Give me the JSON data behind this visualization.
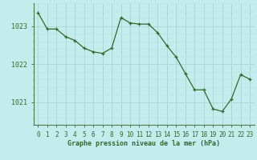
{
  "x": [
    0,
    1,
    2,
    3,
    4,
    5,
    6,
    7,
    8,
    9,
    10,
    11,
    12,
    13,
    14,
    15,
    16,
    17,
    18,
    19,
    20,
    21,
    22,
    23
  ],
  "y": [
    1023.35,
    1022.92,
    1022.92,
    1022.72,
    1022.62,
    1022.42,
    1022.32,
    1022.28,
    1022.42,
    1023.22,
    1023.08,
    1023.05,
    1023.05,
    1022.82,
    1022.48,
    1022.18,
    1021.75,
    1021.32,
    1021.32,
    1020.82,
    1020.75,
    1021.08,
    1021.72,
    1021.6
  ],
  "line_color": "#2d6a2d",
  "marker_color": "#2d6a2d",
  "bg_color": "#c5ecec",
  "grid_major_color": "#aad4d4",
  "grid_minor_color": "#bde0e0",
  "ylabel_ticks": [
    1021,
    1022,
    1023
  ],
  "xlabel": "Graphe pression niveau de la mer (hPa)",
  "ylim_min": 1020.4,
  "ylim_max": 1023.6,
  "spine_color": "#4a7a4a",
  "tick_color": "#2d6a2d",
  "label_color": "#2d6a2d",
  "font_family": "monospace",
  "xlabel_fontsize": 6.0,
  "xtick_fontsize": 5.5,
  "ytick_fontsize": 6.0
}
